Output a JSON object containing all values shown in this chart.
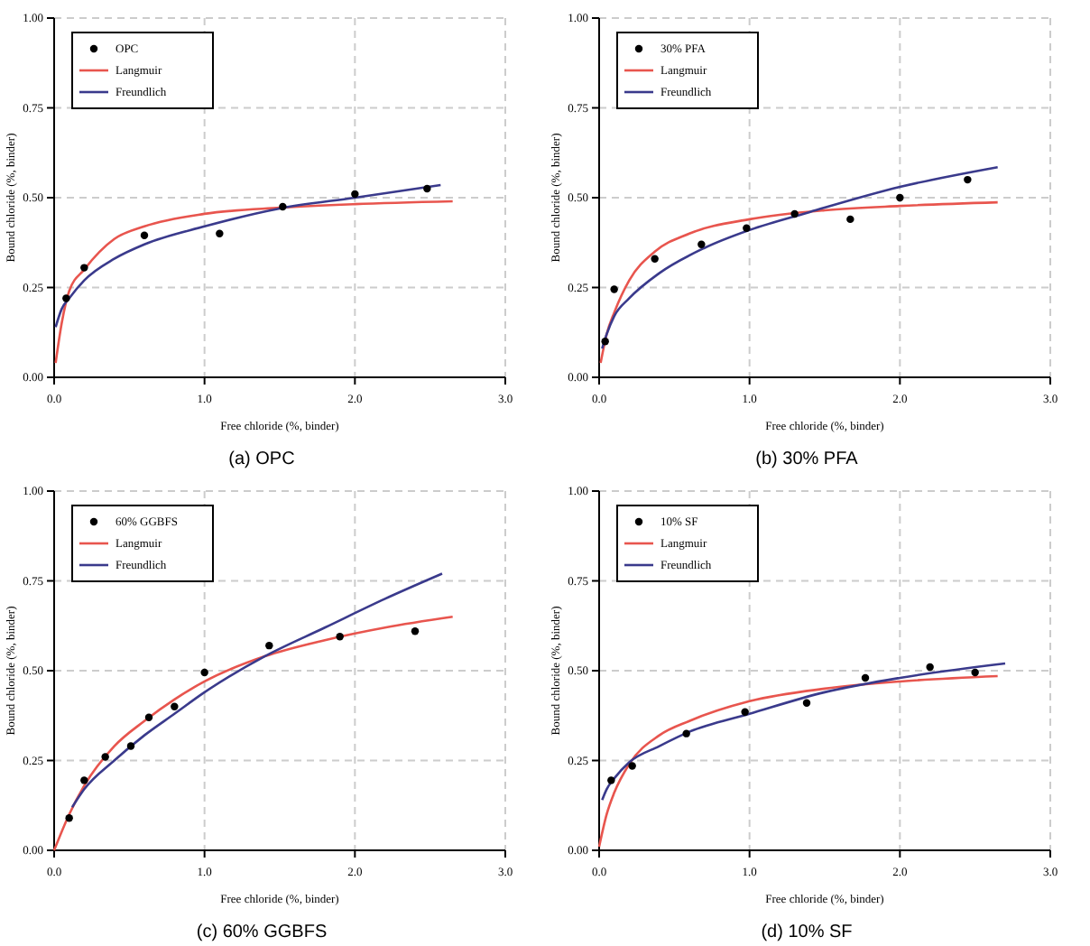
{
  "chart_data": [
    {
      "type": "scatter",
      "title": "(a)  OPC",
      "xlabel": "Free chloride (%, binder)",
      "ylabel": "Bound chloride (%, binder)",
      "xlim": [
        0,
        3
      ],
      "ylim": [
        0,
        1
      ],
      "xticks": [
        {
          "value": 0,
          "label": "0.0"
        },
        {
          "value": 1,
          "label": "1.0"
        },
        {
          "value": 2,
          "label": "2.0"
        },
        {
          "value": 3,
          "label": "3.0"
        }
      ],
      "yticks": [
        {
          "value": 0,
          "label": "0.00"
        },
        {
          "value": 0.25,
          "label": "0.25"
        },
        {
          "value": 0.5,
          "label": "0.50"
        },
        {
          "value": 0.75,
          "label": "0.75"
        },
        {
          "value": 1,
          "label": "1.00"
        }
      ],
      "grid": true,
      "legend": "top left",
      "series": [
        {
          "name": "OPC",
          "marker": "circle",
          "color": "#000000",
          "x": [
            0.08,
            0.2,
            0.6,
            1.1,
            1.52,
            2.0,
            2.48
          ],
          "values": [
            0.22,
            0.305,
            0.395,
            0.4,
            0.475,
            0.51,
            0.525
          ]
        },
        {
          "name": "Langmuir",
          "type": "line",
          "color": "#e8554e",
          "x": [
            0.01,
            0.05,
            0.1,
            0.2,
            0.4,
            0.6,
            1.0,
            1.5,
            2.0,
            2.65
          ],
          "values": [
            0.04,
            0.15,
            0.24,
            0.3,
            0.385,
            0.42,
            0.455,
            0.472,
            0.482,
            0.49
          ]
        },
        {
          "name": "Freundlich",
          "type": "line",
          "color": "#3a3a8c",
          "x": [
            0.01,
            0.05,
            0.1,
            0.2,
            0.4,
            0.6,
            1.0,
            1.5,
            2.0,
            2.57
          ],
          "values": [
            0.14,
            0.19,
            0.22,
            0.27,
            0.33,
            0.37,
            0.42,
            0.47,
            0.5,
            0.535
          ]
        }
      ]
    },
    {
      "type": "scatter",
      "title": "(b)  30%  PFA",
      "xlabel": "Free chloride (%, binder)",
      "ylabel": "Bound chloride (%, binder)",
      "xlim": [
        0,
        3
      ],
      "ylim": [
        0,
        1
      ],
      "xticks": [
        {
          "value": 0,
          "label": "0.0"
        },
        {
          "value": 1,
          "label": "1.0"
        },
        {
          "value": 2,
          "label": "2.0"
        },
        {
          "value": 3,
          "label": "3.0"
        }
      ],
      "yticks": [
        {
          "value": 0,
          "label": "0.00"
        },
        {
          "value": 0.25,
          "label": "0.25"
        },
        {
          "value": 0.5,
          "label": "0.50"
        },
        {
          "value": 0.75,
          "label": "0.75"
        },
        {
          "value": 1,
          "label": "1.00"
        }
      ],
      "grid": true,
      "legend": "top left",
      "series": [
        {
          "name": "30% PFA",
          "marker": "circle",
          "color": "#000000",
          "x": [
            0.04,
            0.1,
            0.37,
            0.68,
            0.98,
            1.3,
            1.67,
            2.0,
            2.45
          ],
          "values": [
            0.1,
            0.245,
            0.33,
            0.37,
            0.415,
            0.455,
            0.44,
            0.5,
            0.55
          ]
        },
        {
          "name": "Langmuir",
          "type": "line",
          "color": "#e8554e",
          "x": [
            0.01,
            0.05,
            0.1,
            0.2,
            0.37,
            0.6,
            1.0,
            1.5,
            2.0,
            2.65
          ],
          "values": [
            0.04,
            0.12,
            0.18,
            0.27,
            0.35,
            0.4,
            0.44,
            0.465,
            0.477,
            0.487
          ]
        },
        {
          "name": "Freundlich",
          "type": "line",
          "color": "#3a3a8c",
          "x": [
            0.02,
            0.05,
            0.1,
            0.2,
            0.4,
            0.7,
            1.0,
            1.4,
            2.0,
            2.65
          ],
          "values": [
            0.08,
            0.12,
            0.17,
            0.22,
            0.29,
            0.36,
            0.41,
            0.46,
            0.53,
            0.585
          ]
        }
      ]
    },
    {
      "type": "scatter",
      "title": "(c)  60%  GGBFS",
      "xlabel": "Free chloride (%, binder)",
      "ylabel": "Bound chloride (%, binder)",
      "xlim": [
        0,
        3
      ],
      "ylim": [
        0,
        1
      ],
      "xticks": [
        {
          "value": 0,
          "label": "0.0"
        },
        {
          "value": 1,
          "label": "1.0"
        },
        {
          "value": 2,
          "label": "2.0"
        },
        {
          "value": 3,
          "label": "3.0"
        }
      ],
      "yticks": [
        {
          "value": 0,
          "label": "0.00"
        },
        {
          "value": 0.25,
          "label": "0.25"
        },
        {
          "value": 0.5,
          "label": "0.50"
        },
        {
          "value": 0.75,
          "label": "0.75"
        },
        {
          "value": 1,
          "label": "1.00"
        }
      ],
      "grid": true,
      "legend": "top left",
      "series": [
        {
          "name": "60% GGBFS",
          "marker": "circle",
          "color": "#000000",
          "x": [
            0.1,
            0.2,
            0.34,
            0.51,
            0.63,
            0.8,
            1.0,
            1.43,
            1.9,
            2.4
          ],
          "values": [
            0.09,
            0.195,
            0.26,
            0.29,
            0.37,
            0.4,
            0.495,
            0.57,
            0.595,
            0.61
          ]
        },
        {
          "name": "Langmuir",
          "type": "line",
          "color": "#e8554e",
          "x": [
            0.0,
            0.1,
            0.2,
            0.4,
            0.6,
            0.8,
            1.0,
            1.4,
            1.8,
            2.2,
            2.65
          ],
          "values": [
            0.0,
            0.1,
            0.18,
            0.29,
            0.36,
            0.42,
            0.47,
            0.54,
            0.585,
            0.62,
            0.65
          ]
        },
        {
          "name": "Freundlich",
          "type": "line",
          "color": "#3a3a8c",
          "x": [
            0.12,
            0.2,
            0.4,
            0.6,
            0.8,
            1.0,
            1.4,
            1.8,
            2.2,
            2.58
          ],
          "values": [
            0.12,
            0.17,
            0.25,
            0.32,
            0.38,
            0.44,
            0.54,
            0.62,
            0.7,
            0.77
          ]
        }
      ]
    },
    {
      "type": "scatter",
      "title": "(d)  10%  SF",
      "xlabel": "Free chloride (%, binder)",
      "ylabel": "Bound chloride (%, binder)",
      "xlim": [
        0,
        3
      ],
      "ylim": [
        0,
        1
      ],
      "xticks": [
        {
          "value": 0,
          "label": "0.0"
        },
        {
          "value": 1,
          "label": "1.0"
        },
        {
          "value": 2,
          "label": "2.0"
        },
        {
          "value": 3,
          "label": "3.0"
        }
      ],
      "yticks": [
        {
          "value": 0,
          "label": "0.00"
        },
        {
          "value": 0.25,
          "label": "0.25"
        },
        {
          "value": 0.5,
          "label": "0.50"
        },
        {
          "value": 0.75,
          "label": "0.75"
        },
        {
          "value": 1,
          "label": "1.00"
        }
      ],
      "grid": true,
      "legend": "top left",
      "series": [
        {
          "name": "10% SF",
          "marker": "circle",
          "color": "#000000",
          "x": [
            0.08,
            0.22,
            0.58,
            0.97,
            1.38,
            1.77,
            2.2,
            2.5
          ],
          "values": [
            0.195,
            0.235,
            0.325,
            0.385,
            0.41,
            0.48,
            0.51,
            0.495
          ]
        },
        {
          "name": "Langmuir",
          "type": "line",
          "color": "#e8554e",
          "x": [
            0.0,
            0.05,
            0.1,
            0.2,
            0.4,
            0.6,
            1.0,
            1.5,
            2.0,
            2.65
          ],
          "values": [
            0.01,
            0.1,
            0.16,
            0.24,
            0.32,
            0.36,
            0.415,
            0.45,
            0.47,
            0.485
          ]
        },
        {
          "name": "Freundlich",
          "type": "line",
          "color": "#3a3a8c",
          "x": [
            0.02,
            0.05,
            0.1,
            0.2,
            0.4,
            0.6,
            1.0,
            1.5,
            2.0,
            2.7
          ],
          "values": [
            0.14,
            0.17,
            0.2,
            0.245,
            0.29,
            0.33,
            0.38,
            0.44,
            0.48,
            0.52
          ]
        }
      ]
    }
  ]
}
